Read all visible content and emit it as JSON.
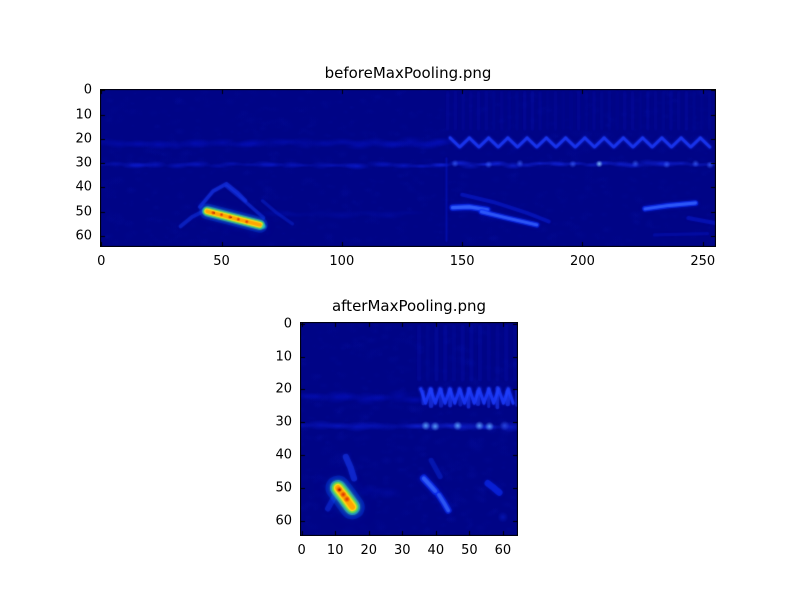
{
  "figure": {
    "background": "#ffffff",
    "axes_text_color": "#000000",
    "frame_color": "#000000"
  },
  "chart_data": [
    {
      "type": "heatmap",
      "title": "beforeMaxPooling.png",
      "colormap": "jet",
      "background_color": "#000486",
      "x_ticks": [
        0,
        50,
        100,
        150,
        200,
        250
      ],
      "y_ticks": [
        0,
        10,
        20,
        30,
        40,
        50,
        60
      ],
      "x_extent": [
        -0.5,
        255.5
      ],
      "y_extent": [
        -0.5,
        64.5
      ],
      "y_inverted": true,
      "grid": false,
      "legend": false,
      "features": [
        {
          "type": "mottle",
          "count": 1400,
          "color": "#1426dc",
          "alpha": 0.06,
          "rmin": 1.2,
          "rmax": 3.2
        },
        {
          "type": "texture_v",
          "x0": 144,
          "x1": 255,
          "y0": 1,
          "y1": 16,
          "spacing": 3.2,
          "width": 1.5,
          "color": "#1226e0",
          "alpha": 0.13
        },
        {
          "type": "blobband",
          "y": 22,
          "h": 4.6,
          "x0": 2,
          "x1": 142,
          "spacing": 7,
          "color": "#0818e8",
          "alpha": 0.42
        },
        {
          "type": "blobband",
          "y": 22,
          "h": 3.4,
          "x0": 96,
          "x1": 140,
          "spacing": 7,
          "color": "#0a1cf0",
          "alpha": 0.22
        },
        {
          "type": "zigzag",
          "y": 21.5,
          "amp": 1.9,
          "period": 8,
          "x0": 145,
          "x1": 255,
          "width": 1.2,
          "color": "#1c3af8",
          "alpha": 0.8
        },
        {
          "type": "blobband",
          "y": 30.8,
          "h": 2.6,
          "x0": 0,
          "x1": 143,
          "spacing": 6,
          "color": "#0f24f0",
          "alpha": 0.55
        },
        {
          "type": "blobband",
          "y": 30.5,
          "h": 2.8,
          "x0": 143,
          "x1": 255,
          "spacing": 5.5,
          "color": "#1830fa",
          "alpha": 0.72
        },
        {
          "type": "dots",
          "color": "#86c8ff",
          "r": 1.5,
          "alpha": 0.95,
          "points": [
            [
              207,
              30.3
            ]
          ]
        },
        {
          "type": "dots",
          "color": "#3c64ff",
          "r": 1.6,
          "alpha": 0.7,
          "points": [
            [
              147,
              30.2
            ],
            [
              161,
              30.6
            ],
            [
              174,
              30.1
            ],
            [
              196,
              30.4
            ],
            [
              222,
              30.2
            ],
            [
              235,
              30.6
            ],
            [
              247,
              30.2
            ],
            [
              253,
              30.8
            ]
          ]
        },
        {
          "type": "blobband",
          "y": 51,
          "h": 3.6,
          "x0": 74,
          "x1": 136,
          "spacing": 9,
          "color": "#0614c8",
          "alpha": 0.3
        },
        {
          "type": "vline",
          "x": 143.5,
          "y0": 28,
          "y1": 62,
          "width": 0.8,
          "color": "#0818cc",
          "alpha": 0.4
        },
        {
          "type": "glowline",
          "pts": [
            [
              33,
              56
            ],
            [
              38,
              52
            ],
            [
              43,
              49.5
            ]
          ],
          "layers": [
            {
              "c": "#1232e2",
              "w": 1.6,
              "a": 0.5
            }
          ]
        },
        {
          "type": "glowline",
          "pts": [
            [
              41,
              48
            ],
            [
              46.5,
              41.5
            ],
            [
              52,
              38.5
            ],
            [
              56.5,
              42
            ],
            [
              60,
              45.5
            ]
          ],
          "layers": [
            {
              "c": "#1736ea",
              "w": 1.5,
              "a": 0.6
            }
          ]
        },
        {
          "type": "glowline",
          "pts": [
            [
              52,
              39.5
            ],
            [
              60,
              46
            ],
            [
              67.5,
              52.5
            ]
          ],
          "layers": [
            {
              "c": "#1434e4",
              "w": 1.4,
              "a": 0.5
            }
          ]
        },
        {
          "type": "glowline",
          "pts": [
            [
              67,
              45.5
            ],
            [
              73,
              50.5
            ],
            [
              79.5,
              55
            ]
          ],
          "layers": [
            {
              "c": "#0d2ad8",
              "w": 1.3,
              "a": 0.38
            }
          ]
        },
        {
          "type": "glowline",
          "pts": [
            [
              44,
              49.8
            ],
            [
              55,
              52.6
            ],
            [
              66,
              55.4
            ]
          ],
          "layers": [
            {
              "c": "#0533ff",
              "w": 6.5,
              "a": 0.33
            },
            {
              "c": "#19c9f2",
              "w": 4.2,
              "a": 0.5
            },
            {
              "c": "#35e45a",
              "w": 3.1,
              "a": 0.8
            },
            {
              "c": "#ffe61e",
              "w": 2.2,
              "a": 1
            },
            {
              "c": "#ffa400",
              "w": 1.4,
              "a": 0.9
            }
          ]
        },
        {
          "type": "dots",
          "color": "#d92603",
          "r": 0.9,
          "alpha": 1,
          "points": [
            [
              46.5,
              50.4
            ],
            [
              50,
              51.2
            ],
            [
              53.5,
              52.2
            ],
            [
              57,
              53.1
            ],
            [
              60.5,
              54.1
            ]
          ]
        },
        {
          "type": "dots",
          "color": "#8c1200",
          "r": 0.5,
          "alpha": 1,
          "points": [
            [
              47,
              50.5
            ],
            [
              54,
              52.3
            ]
          ]
        },
        {
          "type": "dots",
          "color": "#22d2c8",
          "r": 1.4,
          "alpha": 0.75,
          "points": [
            [
              67.6,
              56.1
            ]
          ]
        },
        {
          "type": "glowline",
          "pts": [
            [
              146,
              48.3
            ],
            [
              153,
              48
            ],
            [
              160.5,
              49.2
            ]
          ],
          "layers": [
            {
              "c": "#0c2cf4",
              "w": 2.5,
              "a": 0.7
            },
            {
              "c": "#3766ff",
              "w": 1.3,
              "a": 0.75
            }
          ]
        },
        {
          "type": "glowline",
          "pts": [
            [
              158,
              50
            ],
            [
              168,
              52.4
            ],
            [
              181,
              55.4
            ]
          ],
          "layers": [
            {
              "c": "#0c2cf4",
              "w": 2.3,
              "a": 0.65
            },
            {
              "c": "#3766ff",
              "w": 1.2,
              "a": 0.65
            }
          ]
        },
        {
          "type": "glowline",
          "pts": [
            [
              150,
              43
            ],
            [
              163,
              46
            ],
            [
              177,
              50.5
            ],
            [
              186,
              54
            ]
          ],
          "layers": [
            {
              "c": "#0a22dc",
              "w": 1.6,
              "a": 0.45
            }
          ]
        },
        {
          "type": "glowline",
          "pts": [
            [
              226,
              48.8
            ],
            [
              236,
              47.4
            ],
            [
              247,
              46.4
            ]
          ],
          "layers": [
            {
              "c": "#0c2cf4",
              "w": 2.3,
              "a": 0.68
            },
            {
              "c": "#3766ff",
              "w": 1.2,
              "a": 0.68
            }
          ]
        },
        {
          "type": "glowline",
          "pts": [
            [
              244,
              52.6
            ],
            [
              255,
              54.6
            ]
          ],
          "layers": [
            {
              "c": "#0a1cd4",
              "w": 1.7,
              "a": 0.45
            }
          ]
        },
        {
          "type": "glowline",
          "pts": [
            [
              230,
              59.5
            ],
            [
              252,
              59
            ]
          ],
          "layers": [
            {
              "c": "#081ad0",
              "w": 1.4,
              "a": 0.3
            }
          ]
        }
      ]
    },
    {
      "type": "heatmap",
      "title": "afterMaxPooling.png",
      "colormap": "jet",
      "background_color": "#000486",
      "x_ticks": [
        0,
        10,
        20,
        30,
        40,
        50,
        60
      ],
      "y_ticks": [
        0,
        10,
        20,
        30,
        40,
        50,
        60
      ],
      "x_extent": [
        -0.5,
        64.5
      ],
      "y_extent": [
        -0.5,
        64.5
      ],
      "y_inverted": true,
      "grid": false,
      "legend": false,
      "features": [
        {
          "type": "mottle",
          "count": 700,
          "color": "#1426dc",
          "alpha": 0.07,
          "rmin": 1,
          "rmax": 2.6
        },
        {
          "type": "texture_v",
          "x0": 35,
          "x1": 64,
          "y0": 1,
          "y1": 17,
          "spacing": 2.6,
          "width": 1.3,
          "color": "#1226e0",
          "alpha": 0.16
        },
        {
          "type": "blobband",
          "y": 22.5,
          "h": 3.6,
          "x0": 1,
          "x1": 33,
          "spacing": 4.5,
          "color": "#0818e8",
          "alpha": 0.45
        },
        {
          "type": "zigzag",
          "y": 22,
          "amp": 2.2,
          "period": 2.9,
          "x0": 35.5,
          "x1": 64,
          "width": 0.9,
          "color": "#1c3af8",
          "alpha": 0.85
        },
        {
          "type": "comb",
          "y": 22.5,
          "h": 5.5,
          "x0": 36,
          "x1": 64,
          "spacing": 2.8,
          "width": 1.1,
          "color": "#2342ff",
          "alpha": 0.55
        },
        {
          "type": "blobband",
          "y": 31,
          "h": 2.6,
          "x0": 0,
          "x1": 34,
          "spacing": 5,
          "color": "#0f24f0",
          "alpha": 0.5
        },
        {
          "type": "blobband",
          "y": 31,
          "h": 2.8,
          "x0": 34,
          "x1": 65,
          "spacing": 4.5,
          "color": "#1830fa",
          "alpha": 0.68
        },
        {
          "type": "dots",
          "color": "#5fa8ff",
          "r": 1.4,
          "alpha": 0.9,
          "points": [
            [
              37,
              31
            ],
            [
              39.8,
              31.2
            ],
            [
              46.5,
              31
            ],
            [
              53,
              31
            ],
            [
              56,
              31.2
            ]
          ]
        },
        {
          "type": "dots",
          "color": "#3c64ff",
          "r": 1.5,
          "alpha": 0.6,
          "points": [
            [
              60.5,
              31
            ]
          ]
        },
        {
          "type": "blobband",
          "y": 50.5,
          "h": 4,
          "x0": 20,
          "x1": 28,
          "spacing": 5,
          "color": "#0614c8",
          "alpha": 0.26
        },
        {
          "type": "glowline",
          "pts": [
            [
              13.2,
              40.5
            ],
            [
              14.6,
              43.8
            ],
            [
              15.6,
              47
            ]
          ],
          "layers": [
            {
              "c": "#1635e6",
              "w": 1.9,
              "a": 0.6
            }
          ]
        },
        {
          "type": "glowline",
          "pts": [
            [
              7.8,
              56.2
            ],
            [
              9.4,
              53.2
            ],
            [
              10.5,
              51
            ]
          ],
          "layers": [
            {
              "c": "#1232e0",
              "w": 1.7,
              "a": 0.5
            }
          ]
        },
        {
          "type": "glowline",
          "pts": [
            [
              10.8,
              49.9
            ],
            [
              13,
              52.8
            ],
            [
              15.1,
              55.7
            ]
          ],
          "layers": [
            {
              "c": "#0533ff",
              "w": 7.5,
              "a": 0.35
            },
            {
              "c": "#19c9f2",
              "w": 4.8,
              "a": 0.55
            },
            {
              "c": "#35e45a",
              "w": 3.6,
              "a": 0.85
            },
            {
              "c": "#ffe61e",
              "w": 2.5,
              "a": 1
            },
            {
              "c": "#ffa400",
              "w": 1.6,
              "a": 0.95
            }
          ]
        },
        {
          "type": "dots",
          "color": "#d92603",
          "r": 1.0,
          "alpha": 1,
          "points": [
            [
              11.2,
              50.4
            ],
            [
              12.4,
              51.9
            ],
            [
              13.5,
              53.3
            ]
          ]
        },
        {
          "type": "dots",
          "color": "#8c1200",
          "r": 0.55,
          "alpha": 1,
          "points": [
            [
              11.3,
              50.5
            ]
          ]
        },
        {
          "type": "glowline",
          "pts": [
            [
              38.6,
              41.5
            ],
            [
              41.3,
              46.5
            ]
          ],
          "layers": [
            {
              "c": "#0d2ad8",
              "w": 1.5,
              "a": 0.42
            }
          ]
        },
        {
          "type": "glowline",
          "pts": [
            [
              36.4,
              47
            ],
            [
              38.2,
              49
            ],
            [
              39.9,
              50.9
            ]
          ],
          "layers": [
            {
              "c": "#0c2cf4",
              "w": 2.3,
              "a": 0.68
            },
            {
              "c": "#3b6cff",
              "w": 1.2,
              "a": 0.66
            }
          ]
        },
        {
          "type": "glowline",
          "pts": [
            [
              40.9,
              52
            ],
            [
              42.4,
              54.4
            ],
            [
              43.7,
              56.7
            ]
          ],
          "layers": [
            {
              "c": "#0c2cf4",
              "w": 2.1,
              "a": 0.62
            },
            {
              "c": "#3b6cff",
              "w": 1.1,
              "a": 0.6
            }
          ]
        },
        {
          "type": "glowline",
          "pts": [
            [
              55.5,
              48.5
            ],
            [
              57.3,
              49.9
            ],
            [
              58.9,
              51.3
            ]
          ],
          "layers": [
            {
              "c": "#0c2cf4",
              "w": 2.0,
              "a": 0.6
            }
          ]
        },
        {
          "type": "dots",
          "color": "#0a22d4",
          "r": 1.7,
          "alpha": 0.5,
          "points": [
            [
              60,
              58.8
            ]
          ]
        }
      ]
    }
  ]
}
